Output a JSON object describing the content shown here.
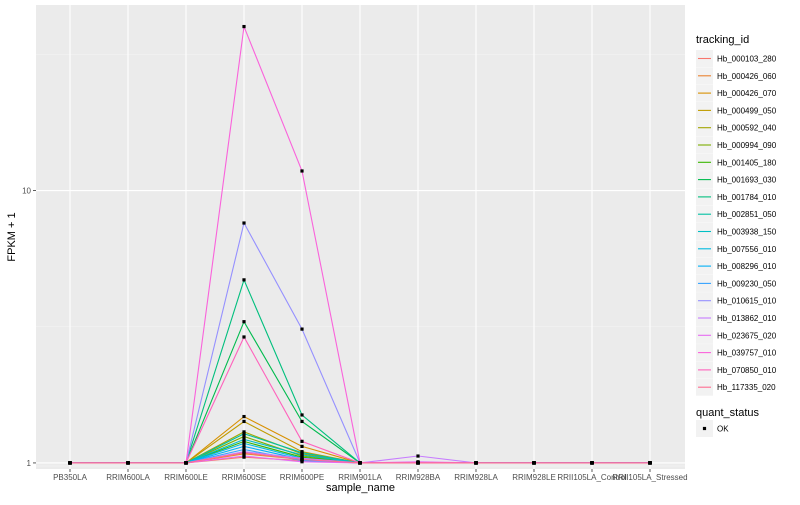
{
  "chart_data": {
    "type": "line",
    "xlabel": "sample_name",
    "ylabel": "FPKM + 1",
    "y_scale": "log",
    "ylim": [
      0.95,
      48
    ],
    "y_ticks": [
      1,
      10
    ],
    "y_tick_labels": [
      "1",
      "10"
    ],
    "categories": [
      "PB350LA",
      "RRIM600LA",
      "RRIM600LE",
      "RRIM600SE",
      "RRIM600PE",
      "RRIM901LA",
      "RRIM928BA",
      "RRIM928LA",
      "RRIM928LE",
      "RRII105LA_Control",
      "RRII105LA_Stressed"
    ],
    "grid": true,
    "background_color": "#ebebeb",
    "legend": {
      "title": "tracking_id",
      "position": "right",
      "status_title": "quant_status",
      "status_label": "OK"
    },
    "series": [
      {
        "name": "Hb_000103_280",
        "color": "#F8766D",
        "values": [
          1,
          1,
          1,
          1.05,
          1.02,
          1,
          1,
          1,
          1,
          1,
          1
        ]
      },
      {
        "name": "Hb_000426_060",
        "color": "#EA8331",
        "values": [
          1,
          1,
          1,
          1.08,
          1.03,
          1,
          1,
          1,
          1,
          1,
          1
        ]
      },
      {
        "name": "Hb_000426_070",
        "color": "#D89000",
        "values": [
          1,
          1,
          1,
          1.48,
          1.15,
          1,
          1,
          1,
          1,
          1,
          1
        ]
      },
      {
        "name": "Hb_000499_050",
        "color": "#C09B00",
        "values": [
          1,
          1,
          1,
          1.42,
          1.1,
          1,
          1,
          1,
          1,
          1,
          1
        ]
      },
      {
        "name": "Hb_000592_040",
        "color": "#A3A500",
        "values": [
          1,
          1,
          1,
          1.3,
          1.08,
          1,
          1,
          1,
          1,
          1,
          1
        ]
      },
      {
        "name": "Hb_000994_090",
        "color": "#7CAE00",
        "values": [
          1,
          1,
          1,
          1.25,
          1.06,
          1,
          1,
          1,
          1,
          1,
          1
        ]
      },
      {
        "name": "Hb_001405_180",
        "color": "#39B600",
        "values": [
          1,
          1,
          1,
          1.2,
          1.05,
          1,
          1,
          1,
          1,
          1,
          1
        ]
      },
      {
        "name": "Hb_001693_030",
        "color": "#00BB4E",
        "values": [
          1,
          1,
          1,
          3.3,
          1.42,
          1,
          1,
          1,
          1,
          1,
          1
        ]
      },
      {
        "name": "Hb_001784_010",
        "color": "#00BF7D",
        "values": [
          1,
          1,
          1,
          4.7,
          1.5,
          1,
          1,
          1,
          1,
          1,
          1
        ]
      },
      {
        "name": "Hb_002851_050",
        "color": "#00C1A3",
        "values": [
          1,
          1,
          1,
          1.28,
          1.09,
          1,
          1,
          1,
          1,
          1,
          1
        ]
      },
      {
        "name": "Hb_003938_150",
        "color": "#00BFC4",
        "values": [
          1,
          1,
          1,
          1.22,
          1.07,
          1,
          1,
          1,
          1,
          1,
          1
        ]
      },
      {
        "name": "Hb_007556_010",
        "color": "#00BAE0",
        "values": [
          1,
          1,
          1,
          1.18,
          1.04,
          1,
          1,
          1,
          1,
          1,
          1
        ]
      },
      {
        "name": "Hb_008296_010",
        "color": "#00B0F6",
        "values": [
          1,
          1,
          1,
          1.15,
          1.03,
          1,
          1,
          1,
          1,
          1,
          1
        ]
      },
      {
        "name": "Hb_009230_050",
        "color": "#35A2FF",
        "values": [
          1,
          1,
          1,
          1.12,
          1.02,
          1,
          1,
          1,
          1,
          1,
          1
        ]
      },
      {
        "name": "Hb_010615_010",
        "color": "#9590FF",
        "values": [
          1,
          1,
          1,
          7.6,
          3.1,
          1,
          1,
          1,
          1,
          1,
          1
        ]
      },
      {
        "name": "Hb_013862_010",
        "color": "#C77CFF",
        "values": [
          1,
          1,
          1,
          1.1,
          1.04,
          1,
          1.06,
          1,
          1,
          1,
          1
        ]
      },
      {
        "name": "Hb_023675_020",
        "color": "#E76BF3",
        "values": [
          1,
          1,
          1,
          1.06,
          1.01,
          1,
          1.01,
          1,
          1,
          1,
          1
        ]
      },
      {
        "name": "Hb_039757_010",
        "color": "#FA62DB",
        "values": [
          1,
          1,
          1,
          40.0,
          11.8,
          1,
          1,
          1,
          1,
          1,
          1
        ]
      },
      {
        "name": "Hb_070850_010",
        "color": "#FF62BC",
        "values": [
          1,
          1,
          1,
          2.9,
          1.2,
          1,
          1,
          1,
          1,
          1,
          1
        ]
      },
      {
        "name": "Hb_117335_020",
        "color": "#FF6C91",
        "values": [
          1,
          1,
          1,
          1.09,
          1.03,
          1,
          1,
          1,
          1,
          1,
          1
        ]
      }
    ]
  }
}
